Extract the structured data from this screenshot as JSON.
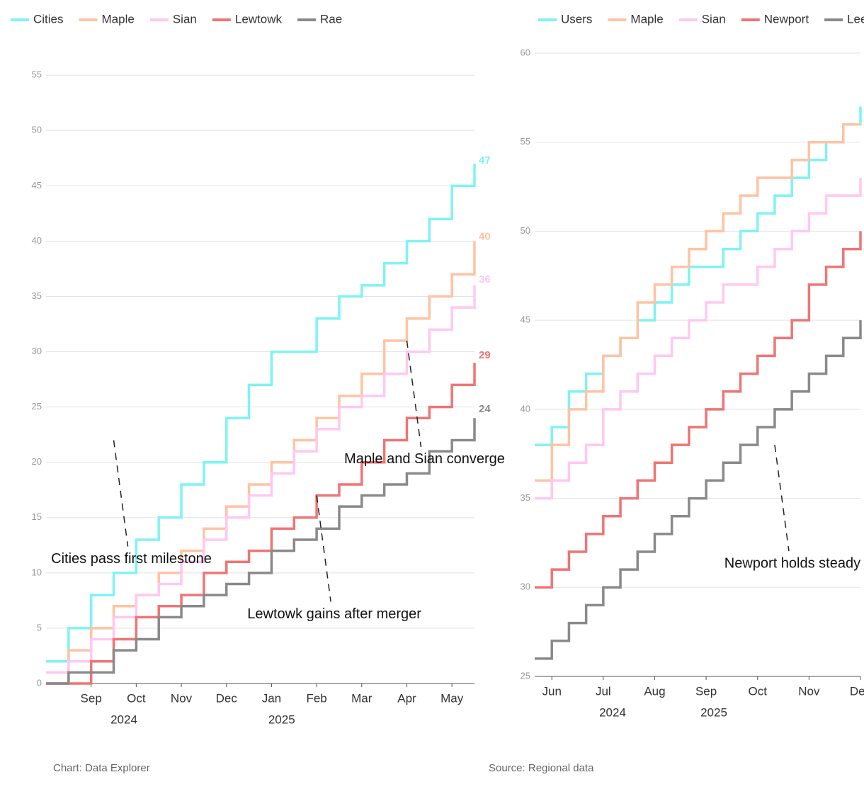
{
  "chart_data": [
    {
      "type": "step",
      "grid": true,
      "x": [
        0,
        1,
        2,
        3,
        4,
        5,
        6,
        7,
        8,
        9,
        10,
        11,
        12,
        13,
        14,
        15,
        16,
        17,
        18,
        19
      ],
      "xlim": [
        0,
        19
      ],
      "xticks": [
        {
          "value": 2,
          "label": "Sep"
        },
        {
          "value": 4,
          "label": "Oct"
        },
        {
          "value": 6,
          "label": "Nov"
        },
        {
          "value": 8,
          "label": "Dec"
        },
        {
          "value": 10,
          "label": "Jan"
        },
        {
          "value": 12,
          "label": "Feb"
        },
        {
          "value": 14,
          "label": "Mar"
        },
        {
          "value": 16,
          "label": "Apr"
        },
        {
          "value": 18,
          "label": "May"
        }
      ],
      "period_labels": [
        "2024",
        "2025"
      ],
      "ylim": [
        0,
        57
      ],
      "yticks": [
        0,
        5,
        10,
        15,
        20,
        25,
        30,
        35,
        40,
        45,
        50,
        55
      ],
      "series": [
        {
          "name": "Cities",
          "color": "#7ff3f3",
          "values": [
            2,
            5,
            8,
            10,
            13,
            15,
            18,
            20,
            24,
            27,
            30,
            30,
            33,
            35,
            36,
            38,
            40,
            42,
            45,
            47
          ]
        },
        {
          "name": "Maple",
          "color": "#ffc3a3",
          "values": [
            0,
            3,
            5,
            7,
            8,
            10,
            12,
            14,
            16,
            18,
            20,
            22,
            24,
            26,
            28,
            31,
            33,
            35,
            37,
            40
          ]
        },
        {
          "name": "Sian",
          "color": "#ffc8f2",
          "values": [
            1,
            2,
            4,
            6,
            8,
            9,
            11,
            13,
            15,
            17,
            19,
            21,
            23,
            25,
            26,
            28,
            30,
            32,
            34,
            36
          ]
        },
        {
          "name": "Lewtowk",
          "color": "#f07474",
          "values": [
            0,
            0,
            2,
            4,
            6,
            7,
            8,
            10,
            11,
            12,
            14,
            15,
            17,
            18,
            20,
            22,
            24,
            25,
            27,
            29
          ]
        },
        {
          "name": "Rae",
          "color": "#8a8a8a",
          "values": [
            0,
            1,
            1,
            3,
            4,
            6,
            7,
            8,
            9,
            10,
            12,
            13,
            14,
            16,
            17,
            18,
            19,
            21,
            22,
            24
          ]
        }
      ],
      "annotations": [
        {
          "x": 3,
          "y": 22,
          "text": "Cities pass first milestone"
        },
        {
          "x": 12,
          "y": 17,
          "text": "Lewtowk gains after merger"
        },
        {
          "x": 16,
          "y": 31,
          "text": "Maple and Sian converge"
        }
      ],
      "source": "Chart: Data Explorer"
    },
    {
      "type": "step",
      "grid": true,
      "x": [
        0,
        1,
        2,
        3,
        4,
        5,
        6,
        7,
        8,
        9,
        10,
        11,
        12,
        13,
        14,
        15,
        16,
        17,
        18,
        19
      ],
      "xlim": [
        0,
        19
      ],
      "xticks": [
        {
          "value": 1,
          "label": "Jun"
        },
        {
          "value": 4,
          "label": "Jul"
        },
        {
          "value": 7,
          "label": "Aug"
        },
        {
          "value": 10,
          "label": "Sep"
        },
        {
          "value": 13,
          "label": "Oct"
        },
        {
          "value": 16,
          "label": "Nov"
        },
        {
          "value": 19,
          "label": "Dec"
        }
      ],
      "period_labels": [
        "2024",
        "2025"
      ],
      "ylim": [
        25,
        60
      ],
      "yticks": [
        25,
        30,
        35,
        40,
        45,
        50,
        55,
        60
      ],
      "series": [
        {
          "name": "Users",
          "color": "#7ff3f3",
          "values": [
            38,
            39,
            41,
            42,
            43,
            44,
            45,
            46,
            47,
            48,
            48,
            49,
            50,
            51,
            52,
            53,
            54,
            55,
            56,
            57
          ]
        },
        {
          "name": "Maple",
          "color": "#ffc3a3",
          "values": [
            36,
            38,
            40,
            41,
            43,
            44,
            46,
            47,
            48,
            49,
            50,
            51,
            52,
            53,
            53,
            54,
            55,
            55,
            56,
            56
          ]
        },
        {
          "name": "Sian",
          "color": "#ffc8f2",
          "values": [
            35,
            36,
            37,
            38,
            40,
            41,
            42,
            43,
            44,
            45,
            46,
            47,
            47,
            48,
            49,
            50,
            51,
            52,
            52,
            53
          ]
        },
        {
          "name": "Newport",
          "color": "#f07474",
          "values": [
            30,
            31,
            32,
            33,
            34,
            35,
            36,
            37,
            38,
            39,
            40,
            41,
            42,
            43,
            44,
            45,
            47,
            48,
            49,
            50
          ]
        },
        {
          "name": "Lee",
          "color": "#8a8a8a",
          "values": [
            26,
            27,
            28,
            29,
            30,
            31,
            32,
            33,
            34,
            35,
            36,
            37,
            38,
            39,
            40,
            41,
            42,
            43,
            44,
            45
          ]
        }
      ],
      "annotations": [
        {
          "x": 14,
          "y": 38,
          "text": "Newport holds steady"
        }
      ],
      "source": "Source: Regional data"
    }
  ]
}
